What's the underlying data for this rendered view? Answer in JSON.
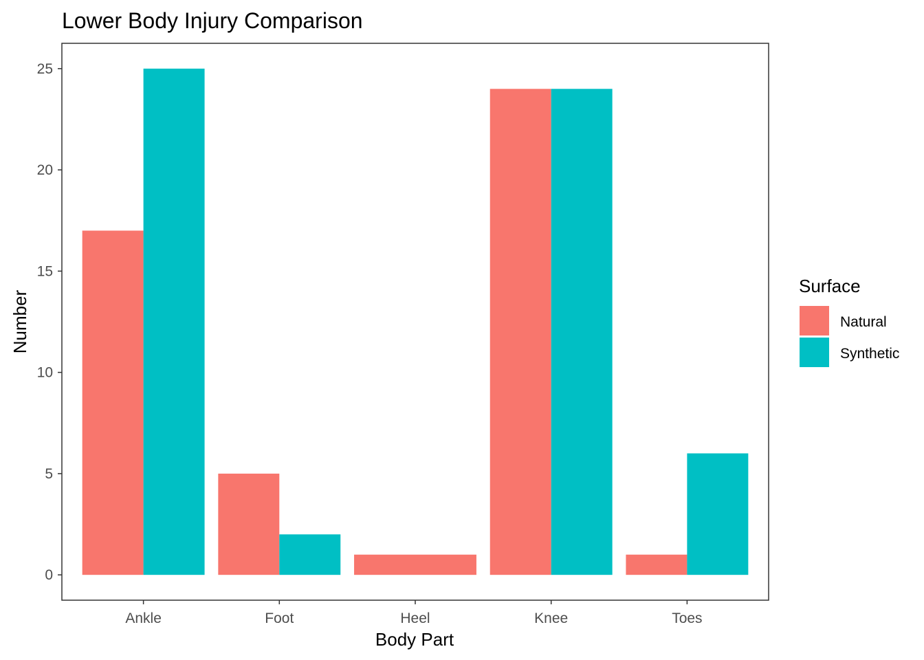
{
  "chart_data": {
    "type": "bar",
    "title": "Lower Body Injury Comparison",
    "xlabel": "Body Part",
    "ylabel": "Number",
    "categories": [
      "Ankle",
      "Foot",
      "Heel",
      "Knee",
      "Toes"
    ],
    "series": [
      {
        "name": "Natural",
        "color": "#F8766D",
        "values": [
          17,
          5,
          1,
          24,
          1
        ]
      },
      {
        "name": "Synthetic",
        "color": "#00BFC4",
        "values": [
          25,
          2,
          null,
          24,
          6
        ]
      }
    ],
    "ylim": [
      -1.25,
      26.25
    ],
    "yticks": [
      "0",
      "5",
      "10",
      "15",
      "20",
      "25"
    ],
    "legend": {
      "title": "Surface",
      "position": "right"
    },
    "grid": false,
    "bar_layout": "dodge"
  }
}
